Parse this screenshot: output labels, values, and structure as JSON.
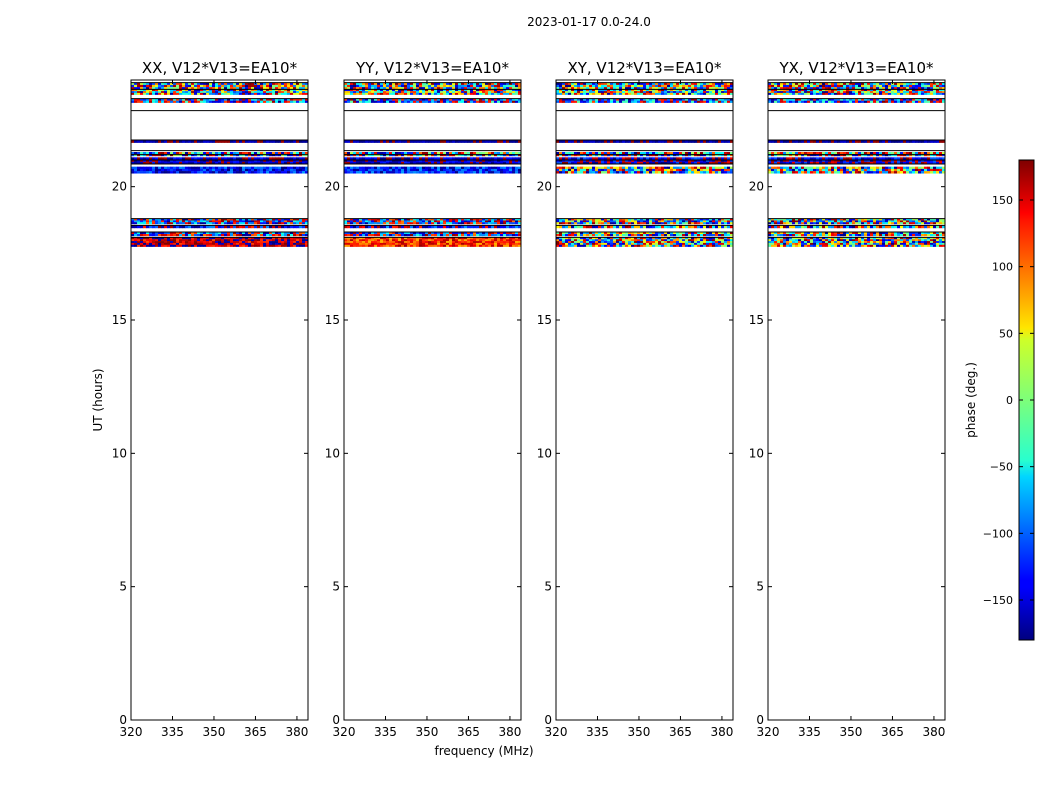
{
  "suptitle": "2023-01-17 0.0-24.0",
  "chart_data": [
    {
      "type": "heatmap",
      "title": "XX, V12*V13=EA10*",
      "xlabel": "",
      "ylabel": "UT (hours)",
      "xlim": [
        320,
        384
      ],
      "ylim": [
        0,
        24
      ],
      "xticks": [
        "320",
        "335",
        "350",
        "365",
        "380"
      ],
      "yticks": [
        "0",
        "5",
        "10",
        "15",
        "20"
      ],
      "bands": [
        {
          "t0": 17.75,
          "t1": 18.1,
          "phase": 160,
          "noise": 50
        },
        {
          "t0": 18.15,
          "t1": 18.3,
          "phase": -150,
          "noise": 120
        },
        {
          "t0": 18.45,
          "t1": 18.55,
          "phase": -160,
          "noise": 80
        },
        {
          "t0": 18.6,
          "t1": 18.8,
          "phase": -150,
          "noise": 120
        },
        {
          "t0": 20.5,
          "t1": 20.75,
          "phase": -130,
          "noise": 50
        },
        {
          "t0": 20.85,
          "t1": 21.1,
          "phase": -160,
          "noise": 40
        },
        {
          "t0": 21.15,
          "t1": 21.3,
          "phase": -120,
          "noise": 150
        },
        {
          "t0": 21.65,
          "t1": 21.75,
          "phase": -170,
          "noise": 20
        },
        {
          "t0": 23.15,
          "t1": 23.3,
          "phase": -130,
          "noise": 120
        },
        {
          "t0": 23.45,
          "t1": 23.65,
          "phase": -150,
          "noise": 180
        },
        {
          "t0": 23.65,
          "t1": 23.9,
          "phase": -60,
          "noise": 180
        }
      ]
    },
    {
      "type": "heatmap",
      "title": "YY, V12*V13=EA10*",
      "xlabel": "frequency (MHz)",
      "ylabel": "",
      "xlim": [
        320,
        384
      ],
      "ylim": [
        0,
        24
      ],
      "xticks": [
        "320",
        "335",
        "350",
        "365",
        "380"
      ],
      "yticks": [
        "0",
        "5",
        "10",
        "15",
        "20"
      ],
      "bands": [
        {
          "t0": 17.75,
          "t1": 18.1,
          "phase": 120,
          "noise": 50
        },
        {
          "t0": 18.15,
          "t1": 18.3,
          "phase": -150,
          "noise": 120
        },
        {
          "t0": 18.45,
          "t1": 18.55,
          "phase": -160,
          "noise": 80
        },
        {
          "t0": 18.6,
          "t1": 18.8,
          "phase": -150,
          "noise": 120
        },
        {
          "t0": 20.5,
          "t1": 20.75,
          "phase": -130,
          "noise": 50
        },
        {
          "t0": 20.85,
          "t1": 21.1,
          "phase": -160,
          "noise": 40
        },
        {
          "t0": 21.15,
          "t1": 21.3,
          "phase": -120,
          "noise": 150
        },
        {
          "t0": 21.65,
          "t1": 21.75,
          "phase": -170,
          "noise": 20
        },
        {
          "t0": 23.15,
          "t1": 23.3,
          "phase": -130,
          "noise": 120
        },
        {
          "t0": 23.45,
          "t1": 23.65,
          "phase": -150,
          "noise": 180
        },
        {
          "t0": 23.65,
          "t1": 23.9,
          "phase": -60,
          "noise": 180
        }
      ]
    },
    {
      "type": "heatmap",
      "title": "XY, V12*V13=EA10*",
      "xlabel": "",
      "ylabel": "",
      "xlim": [
        320,
        384
      ],
      "ylim": [
        0,
        24
      ],
      "xticks": [
        "320",
        "335",
        "350",
        "365",
        "380"
      ],
      "yticks": [
        "0",
        "5",
        "10",
        "15",
        "20"
      ],
      "bands": [
        {
          "t0": 17.75,
          "t1": 18.1,
          "phase": 0,
          "noise": 180
        },
        {
          "t0": 18.15,
          "t1": 18.3,
          "phase": 0,
          "noise": 180
        },
        {
          "t0": 18.45,
          "t1": 18.55,
          "phase": 0,
          "noise": 180
        },
        {
          "t0": 18.6,
          "t1": 18.8,
          "phase": 0,
          "noise": 180
        },
        {
          "t0": 20.5,
          "t1": 20.75,
          "phase": 0,
          "noise": 180
        },
        {
          "t0": 20.85,
          "t1": 21.1,
          "phase": -160,
          "noise": 60
        },
        {
          "t0": 21.15,
          "t1": 21.3,
          "phase": -120,
          "noise": 150
        },
        {
          "t0": 21.65,
          "t1": 21.75,
          "phase": -170,
          "noise": 20
        },
        {
          "t0": 23.15,
          "t1": 23.3,
          "phase": -130,
          "noise": 120
        },
        {
          "t0": 23.45,
          "t1": 23.65,
          "phase": -150,
          "noise": 180
        },
        {
          "t0": 23.65,
          "t1": 23.9,
          "phase": -60,
          "noise": 180
        }
      ]
    },
    {
      "type": "heatmap",
      "title": "YX, V12*V13=EA10*",
      "xlabel": "",
      "ylabel": "",
      "xlim": [
        320,
        384
      ],
      "ylim": [
        0,
        24
      ],
      "xticks": [
        "320",
        "335",
        "350",
        "365",
        "380"
      ],
      "yticks": [
        "0",
        "5",
        "10",
        "15",
        "20"
      ],
      "bands": [
        {
          "t0": 17.75,
          "t1": 18.1,
          "phase": 0,
          "noise": 180
        },
        {
          "t0": 18.15,
          "t1": 18.3,
          "phase": 0,
          "noise": 180
        },
        {
          "t0": 18.45,
          "t1": 18.55,
          "phase": 0,
          "noise": 180
        },
        {
          "t0": 18.6,
          "t1": 18.8,
          "phase": 0,
          "noise": 180
        },
        {
          "t0": 20.5,
          "t1": 20.75,
          "phase": 0,
          "noise": 180
        },
        {
          "t0": 20.85,
          "t1": 21.1,
          "phase": -160,
          "noise": 60
        },
        {
          "t0": 21.15,
          "t1": 21.3,
          "phase": -120,
          "noise": 150
        },
        {
          "t0": 21.65,
          "t1": 21.75,
          "phase": -170,
          "noise": 20
        },
        {
          "t0": 23.15,
          "t1": 23.3,
          "phase": -130,
          "noise": 120
        },
        {
          "t0": 23.45,
          "t1": 23.65,
          "phase": -150,
          "noise": 180
        },
        {
          "t0": 23.65,
          "t1": 23.9,
          "phase": -60,
          "noise": 180
        }
      ]
    }
  ],
  "colorbar": {
    "label": "phase (deg.)",
    "range": [
      -180,
      180
    ],
    "ticks": [
      "150",
      "100",
      "50",
      "0",
      "−50",
      "−100",
      "−150"
    ],
    "tick_values": [
      150,
      100,
      50,
      0,
      -50,
      -100,
      -150
    ],
    "colormap": "jet"
  }
}
